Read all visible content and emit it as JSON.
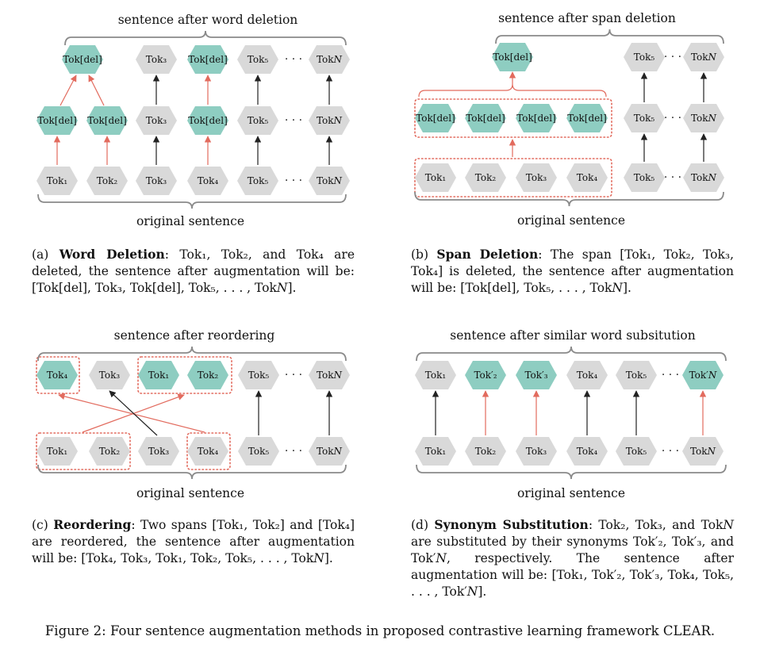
{
  "tokens": {
    "tok1": "Tok₁",
    "tok2": "Tok₂",
    "tok3": "Tok₃",
    "tok4": "Tok₄",
    "tok5": "Tok₅",
    "tokN": "Tok𝑁",
    "del": "Tok[del]",
    "tok2p": "Tok′₂",
    "tok3p": "Tok′₃",
    "tokNp": "Tok′𝑁",
    "ellipsis": "· · ·"
  },
  "colors": {
    "gray": "#d9d9d9",
    "teal": "#8ecdc1",
    "red_arrow": "#e26b5e",
    "black_arrow": "#222222"
  },
  "panels": {
    "a": {
      "top_label": "sentence after word deletion",
      "bottom_label": "original sentence",
      "caption_tag": "(a)",
      "caption_title": "Word Deletion",
      "caption_body": ": Tok₁, Tok₂, and Tok₄ are deleted, the sentence after augmentation will be: [Tok[del], Tok₃, Tok[del], Tok₅, . . . , Tok𝑁]."
    },
    "b": {
      "top_label": "sentence after span deletion",
      "bottom_label": "original sentence",
      "caption_tag": "(b)",
      "caption_title": "Span Deletion",
      "caption_body": ": The span [Tok₁, Tok₂, Tok₃, Tok₄] is deleted, the sentence after augmentation will be: [Tok[del], Tok₅, . . . , Tok𝑁]."
    },
    "c": {
      "top_label": "sentence after reordering",
      "bottom_label": "original sentence",
      "caption_tag": "(c)",
      "caption_title": "Reordering",
      "caption_body": ": Two spans [Tok₁, Tok₂] and [Tok₄] are reordered, the sentence after augmentation will be: [Tok₄, Tok₃, Tok₁, Tok₂, Tok₅, . . . , Tok𝑁]."
    },
    "d": {
      "top_label": "sentence after similar word subsitution",
      "bottom_label": "original sentence",
      "caption_tag": "(d)",
      "caption_title": "Synonym Substitution",
      "caption_body": ": Tok₂, Tok₃, and Tok𝑁 are substituted by their synonyms Tok′₂, Tok′₃, and Tok′𝑁, respectively. The sentence after augmentation will be: [Tok₁, Tok′₂, Tok′₃, Tok₄, Tok₅, . . . , Tok′𝑁]."
    }
  },
  "figure_caption": "Figure 2: Four sentence augmentation methods in proposed contrastive learning framework CLEAR."
}
